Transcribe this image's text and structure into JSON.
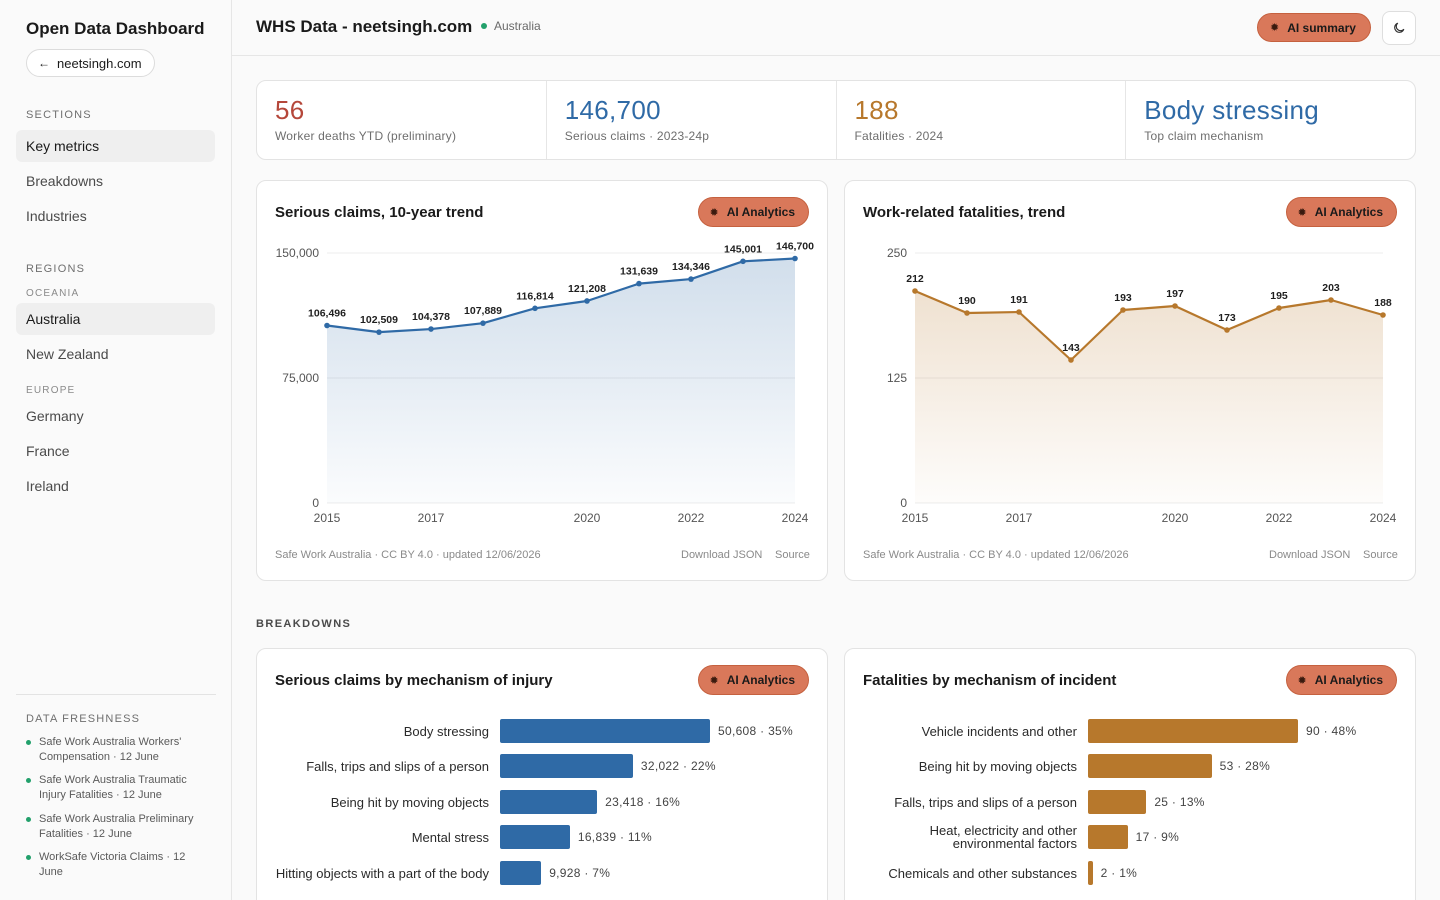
{
  "sidebar": {
    "brand": "Open Data Dashboard",
    "back_link": "neetsingh.com",
    "sections_label": "SECTIONS",
    "sections": [
      "Key metrics",
      "Breakdowns",
      "Industries"
    ],
    "regions_label": "REGIONS",
    "oceania_label": "OCEANIA",
    "oceania": [
      "Australia",
      "New Zealand"
    ],
    "europe_label": "EUROPE",
    "europe": [
      "Germany",
      "France",
      "Ireland"
    ],
    "freshness_label": "DATA FRESHNESS",
    "freshness": [
      "Safe Work Australia Workers' Compensation · 12 June",
      "Safe Work Australia Traumatic Injury Fatalities · 12 June",
      "Safe Work Australia Preliminary Fatalities · 12 June",
      "WorkSafe Victoria Claims · 12 June"
    ]
  },
  "header": {
    "title": "WHS Data - neetsingh.com",
    "region": "Australia",
    "ai_summary": "AI summary"
  },
  "kpis": [
    {
      "value": "56",
      "label": "Worker deaths YTD (preliminary)",
      "color": "#b5473a"
    },
    {
      "value": "146,700",
      "label": "Serious claims · 2023-24p",
      "color": "#2f6aa6"
    },
    {
      "value": "188",
      "label": "Fatalities · 2024",
      "color": "#b7782c"
    },
    {
      "value": "Body stressing",
      "label": "Top claim mechanism",
      "color": "#2f6aa6"
    }
  ],
  "ai_analytics_label": "AI Analytics",
  "footer": {
    "source_text": "Safe Work Australia · CC BY 4.0 · updated 12/06/2026",
    "download": "Download JSON",
    "source": "Source"
  },
  "breakdowns_label": "BREAKDOWNS",
  "chart_data": [
    {
      "type": "area",
      "title": "Serious claims, 10-year trend",
      "color": "#2f6aa6",
      "x": [
        2015,
        2016,
        2017,
        2018,
        2019,
        2020,
        2021,
        2022,
        2023,
        2024
      ],
      "values": [
        106496,
        102509,
        104378,
        107889,
        116814,
        121208,
        131639,
        134346,
        145001,
        146700
      ],
      "data_labels": [
        "106,496",
        "102,509",
        "104,378",
        "107,889",
        "116,814",
        "121,208",
        "131,639",
        "134,346",
        "145,001",
        "146,700"
      ],
      "x_ticks": [
        "2015",
        "2017",
        "2020",
        "2022",
        "2024"
      ],
      "y_ticks": [
        "0",
        "75,000",
        "150,000"
      ],
      "ylim": [
        0,
        150000
      ]
    },
    {
      "type": "area",
      "title": "Work-related fatalities, trend",
      "color": "#b7782c",
      "x": [
        2015,
        2016,
        2017,
        2018,
        2019,
        2020,
        2021,
        2022,
        2023,
        2024
      ],
      "values": [
        212,
        190,
        191,
        143,
        193,
        197,
        173,
        195,
        203,
        188
      ],
      "data_labels": [
        "212",
        "190",
        "191",
        "143",
        "193",
        "197",
        "173",
        "195",
        "203",
        "188"
      ],
      "x_ticks": [
        "2015",
        "2017",
        "2020",
        "2022",
        "2024"
      ],
      "y_ticks": [
        "0",
        "125",
        "250"
      ],
      "ylim": [
        0,
        250
      ]
    },
    {
      "type": "bar",
      "orientation": "horizontal",
      "title": "Serious claims by mechanism of injury",
      "color": "#2f6aa6",
      "categories": [
        "Body stressing",
        "Falls, trips and slips of a person",
        "Being hit by moving objects",
        "Mental stress",
        "Hitting objects with a part of the body"
      ],
      "values": [
        50608,
        32022,
        23418,
        16839,
        9928
      ],
      "value_labels": [
        "50,608 · 35%",
        "32,022 · 22%",
        "23,418 · 16%",
        "16,839 · 11%",
        "9,928 · 7%"
      ]
    },
    {
      "type": "bar",
      "orientation": "horizontal",
      "title": "Fatalities by mechanism of incident",
      "color": "#b7782c",
      "categories": [
        "Vehicle incidents and other",
        "Being hit by moving objects",
        "Falls, trips and slips of a person",
        "Heat, electricity and other environmental factors",
        "Chemicals and other substances"
      ],
      "values": [
        90,
        53,
        25,
        17,
        2
      ],
      "value_labels": [
        "90 · 48%",
        "53 · 28%",
        "25 · 13%",
        "17 · 9%",
        "2 · 1%"
      ]
    }
  ]
}
